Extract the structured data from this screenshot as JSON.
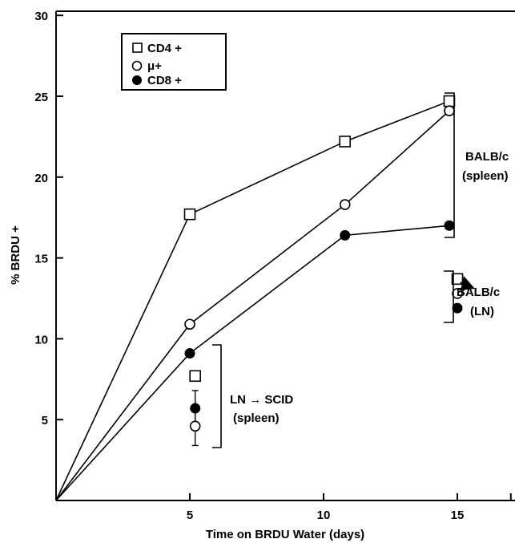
{
  "chart_data": {
    "type": "line",
    "title": "",
    "xlabel": "Time on BRDU Water (days)",
    "ylabel": "% BRDU +",
    "xlim": [
      0,
      17
    ],
    "ylim": [
      0,
      30
    ],
    "xticks": [
      "5",
      "10",
      "15"
    ],
    "yticks": [
      "5",
      "10",
      "15",
      "20",
      "25",
      "30"
    ],
    "xtick_values": [
      5,
      10,
      15
    ],
    "ytick_values": [
      5,
      10,
      15,
      20,
      25,
      30
    ],
    "legend_position": "top-left",
    "series": [
      {
        "name": "CD4 +",
        "marker": "open-square",
        "x": [
          0,
          5,
          10.8,
          14.7
        ],
        "y": [
          0,
          17.7,
          22.2,
          24.7
        ]
      },
      {
        "name": "μ+",
        "marker": "open-circle",
        "x": [
          0,
          5,
          10.8,
          14.7
        ],
        "y": [
          0,
          10.9,
          18.3,
          24.1
        ]
      },
      {
        "name": "CD8 +",
        "marker": "filled-circle",
        "x": [
          0,
          5,
          10.8,
          14.7
        ],
        "y": [
          0,
          9.1,
          16.4,
          17.0
        ]
      }
    ],
    "groups": [
      {
        "label_lines": [
          "LN → SCID",
          "(spleen)"
        ],
        "points": [
          {
            "series": "CD4 +",
            "x": 5.2,
            "y": 7.7
          },
          {
            "series": "CD8 +",
            "x": 5.2,
            "y": 5.7,
            "error": [
              4.6,
              6.8
            ]
          },
          {
            "series": "μ+",
            "x": 5.2,
            "y": 4.6,
            "error": [
              3.4,
              5.7
            ]
          }
        ]
      },
      {
        "label_lines": [
          "BALB/c",
          "(LN)"
        ],
        "points": [
          {
            "series": "CD4 +",
            "x": 15.0,
            "y": 13.7
          },
          {
            "series": "μ+",
            "x": 15.0,
            "y": 12.8
          },
          {
            "series": "CD8 +",
            "x": 15.0,
            "y": 11.9
          }
        ]
      },
      {
        "label_lines": [
          "BALB/c",
          "(spleen)"
        ],
        "points": []
      }
    ]
  },
  "ui": {
    "colors": {
      "ink": "#000000",
      "background": "#ffffff"
    }
  }
}
